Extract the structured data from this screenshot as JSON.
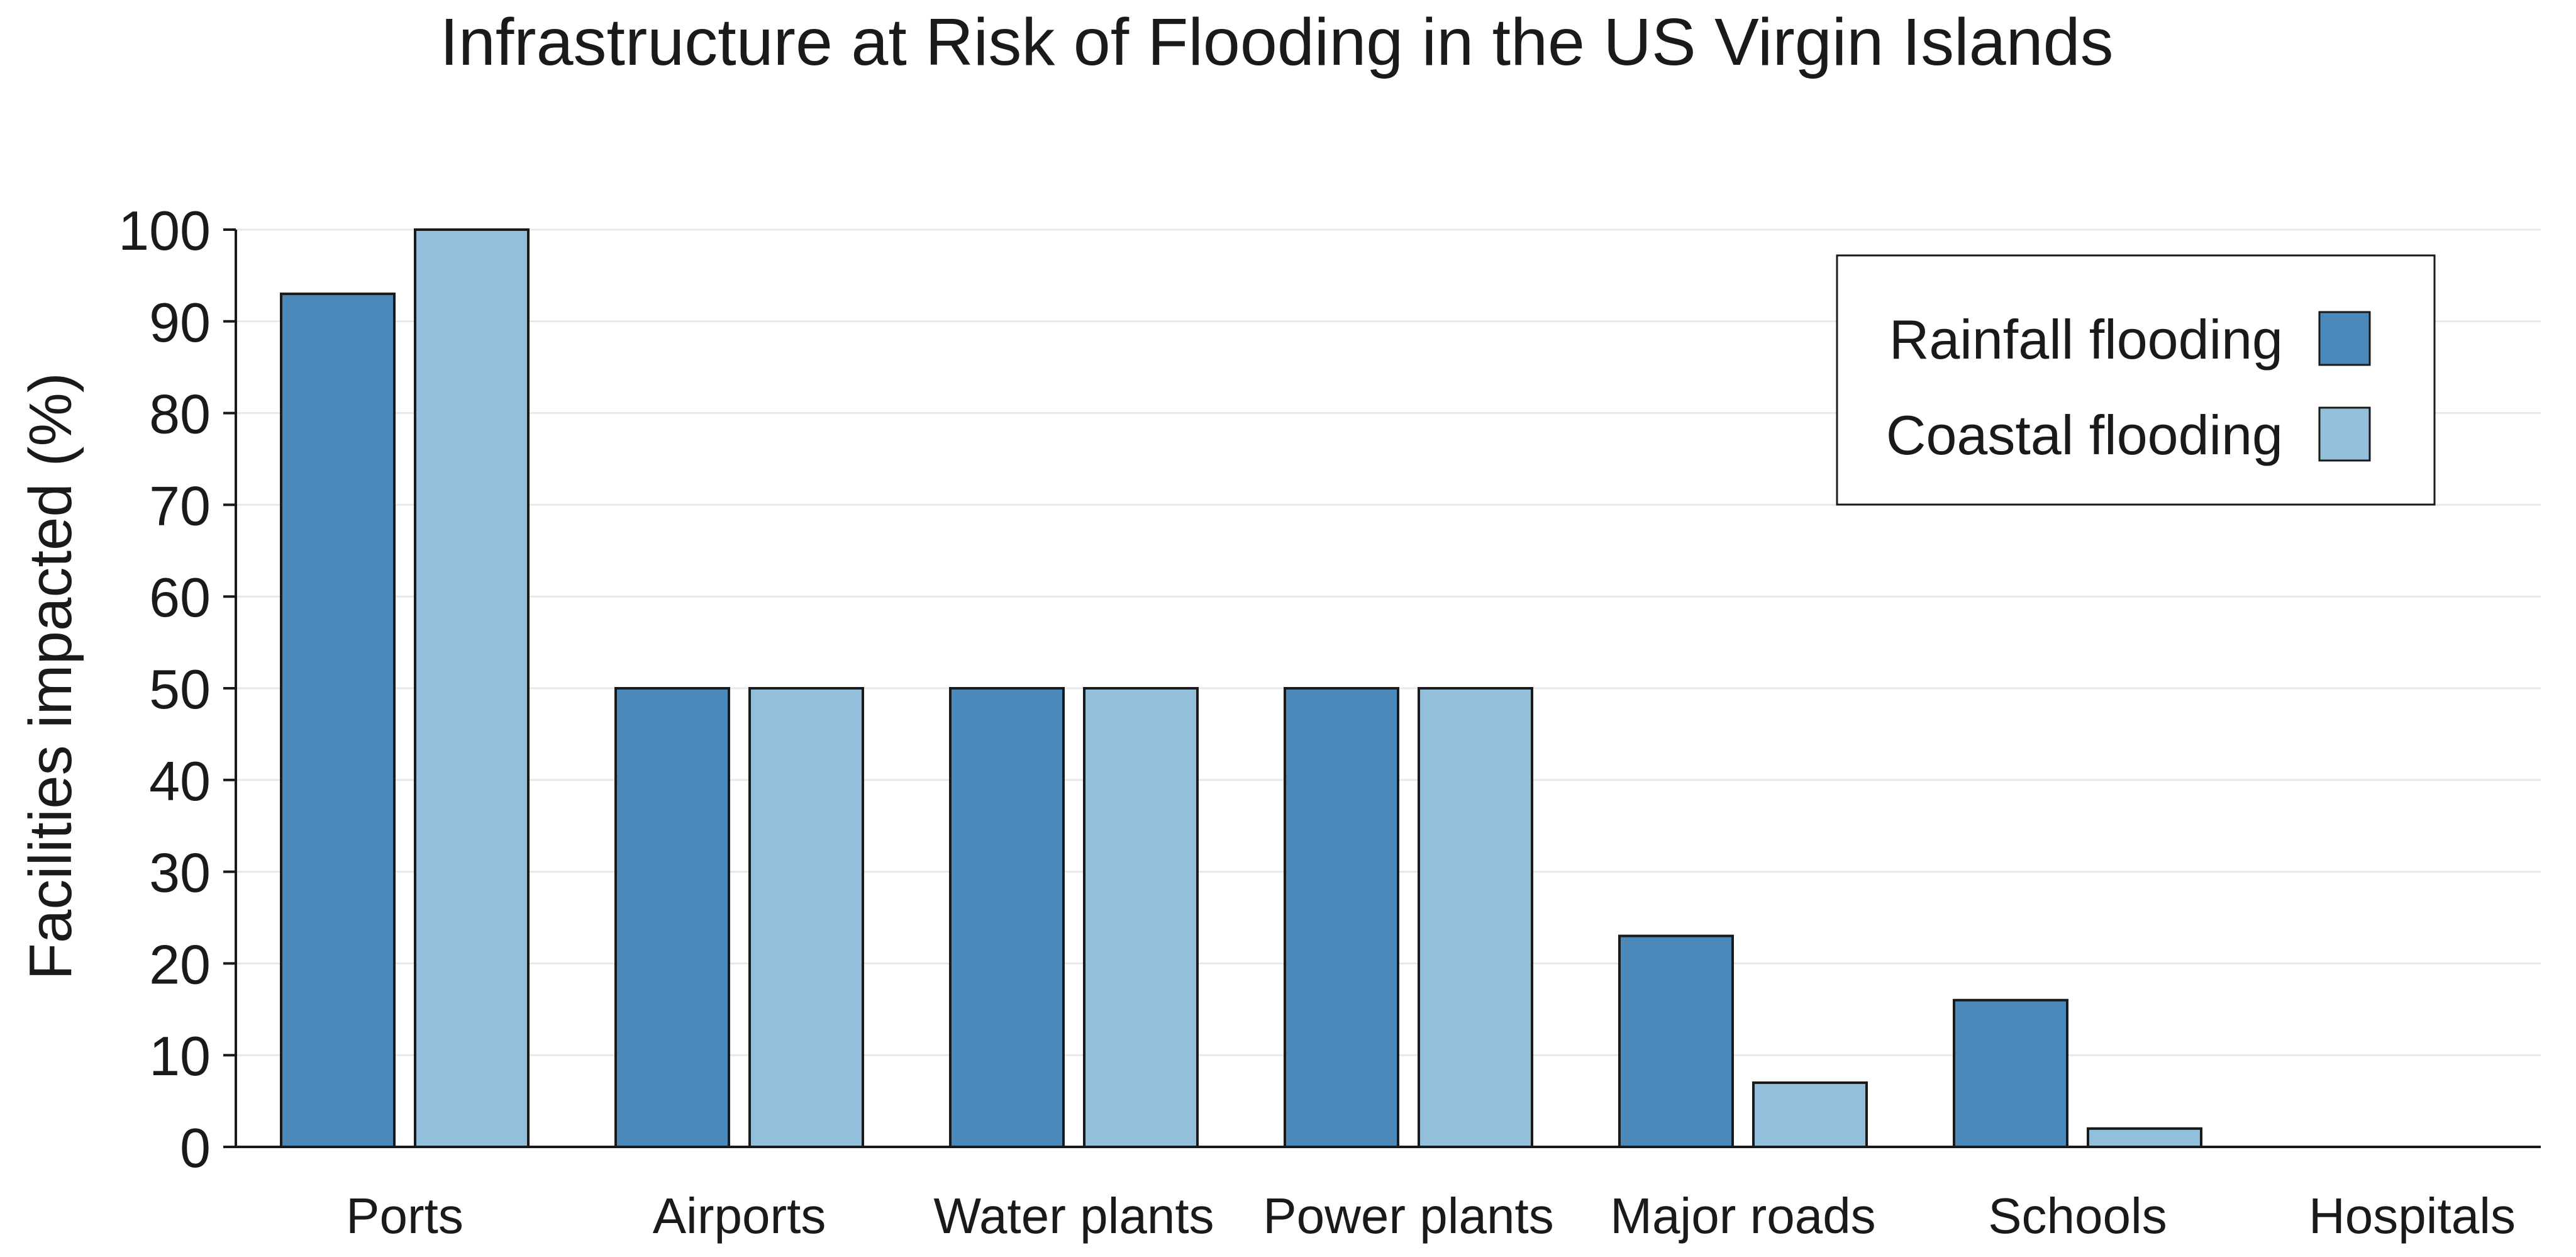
{
  "chart_data": {
    "type": "bar",
    "title": "Infrastructure at Risk of Flooding in the US Virgin Islands",
    "xlabel": "",
    "ylabel": "Facilities impacted (%)",
    "categories": [
      "Ports",
      "Airports",
      "Water plants",
      "Power plants",
      "Major roads",
      "Schools",
      "Hospitals"
    ],
    "series": [
      {
        "name": "Rainfall flooding",
        "color": "#4a89ba",
        "values": [
          93,
          50,
          50,
          50,
          23,
          16,
          0
        ]
      },
      {
        "name": "Coastal flooding",
        "color": "#94bfda",
        "values": [
          100,
          50,
          50,
          50,
          7,
          2,
          0
        ]
      }
    ],
    "ylim": [
      0,
      100
    ],
    "yticks": [
      0,
      10,
      20,
      30,
      40,
      50,
      60,
      70,
      80,
      90,
      100
    ],
    "grid": true,
    "legend_position": "top-right"
  }
}
